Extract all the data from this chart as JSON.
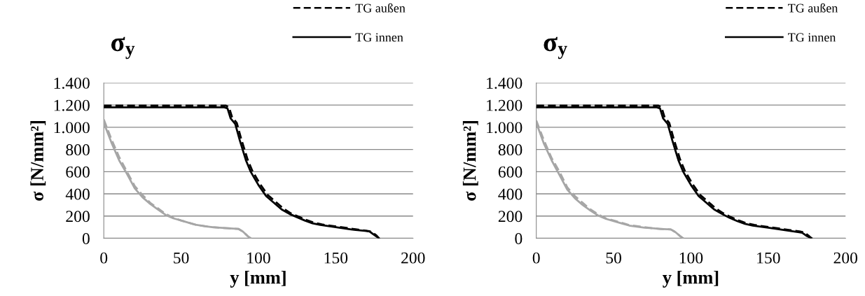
{
  "chart_data": [
    {
      "type": "line",
      "title": "σ$_{y}$",
      "xlabel": "y [mm]",
      "ylabel": "σ [N/mm²]",
      "xlim": [
        0,
        200
      ],
      "xticks": [
        0,
        50,
        100,
        150,
        200
      ],
      "ylim": [
        0,
        1400
      ],
      "yticks": [
        0,
        200,
        400,
        600,
        800,
        {
          "value": 1000,
          "label": "1.000"
        },
        {
          "value": 1200,
          "label": "1.200"
        },
        {
          "value": 1400,
          "label": "1.400"
        }
      ],
      "grid": "y",
      "legend": "top right",
      "series": [
        {
          "name": "TG außen",
          "color": "#000000",
          "line_style": "dashed",
          "x": [
            0,
            79,
            81,
            83,
            86,
            89,
            93,
            96,
            101,
            106,
            111,
            116,
            121,
            126,
            131,
            136,
            141,
            151,
            161,
            171,
            173,
            176,
            178
          ],
          "values": [
            1195,
            1195,
            1180,
            1090,
            1040,
            890,
            710,
            610,
            490,
            390,
            330,
            270,
            225,
            195,
            165,
            140,
            125,
            105,
            85,
            65,
            60,
            30,
            0
          ]
        },
        {
          "name": "TG innen",
          "color": "#000000",
          "line_style": "solid",
          "x": [
            0,
            78,
            80,
            82,
            85,
            88,
            92,
            95,
            100,
            105,
            110,
            115,
            120,
            125,
            130,
            135,
            140,
            150,
            160,
            170,
            172,
            175,
            178
          ],
          "values": [
            1180,
            1180,
            1170,
            1080,
            1030,
            880,
            700,
            600,
            480,
            380,
            320,
            260,
            220,
            190,
            160,
            135,
            120,
            100,
            80,
            65,
            60,
            30,
            0
          ]
        },
        {
          "color": "#a6a6a6",
          "line_style": "dashed",
          "x": [
            0,
            5,
            10,
            15,
            20,
            25,
            30,
            35,
            40,
            45,
            50,
            55,
            60,
            65,
            70,
            75,
            80,
            87,
            90,
            93,
            95
          ],
          "values": [
            1070,
            890,
            730,
            600,
            470,
            390,
            320,
            270,
            220,
            185,
            160,
            140,
            120,
            110,
            100,
            95,
            90,
            85,
            60,
            20,
            0
          ]
        },
        {
          "color": "#a6a6a6",
          "line_style": "solid",
          "x": [
            0,
            5,
            10,
            15,
            20,
            25,
            30,
            35,
            40,
            45,
            50,
            55,
            60,
            65,
            70,
            75,
            80,
            87,
            90,
            93,
            95
          ],
          "values": [
            1040,
            860,
            700,
            580,
            450,
            370,
            310,
            260,
            210,
            180,
            160,
            140,
            120,
            110,
            100,
            95,
            90,
            85,
            60,
            20,
            0
          ]
        }
      ]
    },
    {
      "type": "line",
      "title": "σ$_{y}$",
      "xlabel": "y [mm]",
      "ylabel": "σ [N/mm²]",
      "xlim": [
        0,
        200
      ],
      "xticks": [
        0,
        50,
        100,
        150,
        200
      ],
      "ylim": [
        0,
        1400
      ],
      "yticks": [
        0,
        200,
        400,
        600,
        800,
        {
          "value": 1000,
          "label": "1.000"
        },
        {
          "value": 1200,
          "label": "1.200"
        },
        {
          "value": 1400,
          "label": "1.400"
        }
      ],
      "grid": "y",
      "legend": "top right",
      "series": [
        {
          "name": "TG außen",
          "color": "#000000",
          "line_style": "dashed",
          "x": [
            0,
            79,
            81,
            83,
            86,
            89,
            93,
            96,
            101,
            106,
            111,
            116,
            121,
            126,
            131,
            136,
            141,
            151,
            161,
            171,
            173,
            176,
            178
          ],
          "values": [
            1195,
            1195,
            1180,
            1090,
            1040,
            890,
            710,
            610,
            490,
            390,
            330,
            270,
            225,
            190,
            160,
            135,
            120,
            100,
            80,
            60,
            55,
            25,
            0
          ]
        },
        {
          "name": "TG innen",
          "color": "#000000",
          "line_style": "solid",
          "x": [
            0,
            78,
            80,
            82,
            85,
            88,
            92,
            95,
            100,
            105,
            110,
            115,
            120,
            125,
            130,
            135,
            140,
            150,
            160,
            170,
            172,
            175,
            178
          ],
          "values": [
            1180,
            1180,
            1170,
            1080,
            1030,
            880,
            700,
            600,
            480,
            380,
            320,
            260,
            220,
            185,
            155,
            130,
            115,
            95,
            75,
            55,
            50,
            20,
            0
          ]
        },
        {
          "color": "#a6a6a6",
          "line_style": "dashed",
          "x": [
            0,
            5,
            10,
            15,
            20,
            25,
            30,
            35,
            40,
            45,
            50,
            55,
            60,
            65,
            70,
            75,
            80,
            87,
            90,
            93,
            95
          ],
          "values": [
            1060,
            880,
            720,
            600,
            460,
            380,
            320,
            260,
            215,
            180,
            160,
            140,
            120,
            110,
            100,
            90,
            85,
            80,
            55,
            20,
            0
          ]
        },
        {
          "color": "#a6a6a6",
          "line_style": "solid",
          "x": [
            0,
            5,
            10,
            15,
            20,
            25,
            30,
            35,
            40,
            45,
            50,
            55,
            60,
            65,
            70,
            75,
            80,
            87,
            90,
            93,
            95
          ],
          "values": [
            1040,
            850,
            700,
            570,
            440,
            360,
            300,
            250,
            205,
            175,
            155,
            135,
            115,
            105,
            95,
            90,
            85,
            80,
            55,
            20,
            0
          ]
        }
      ]
    }
  ]
}
